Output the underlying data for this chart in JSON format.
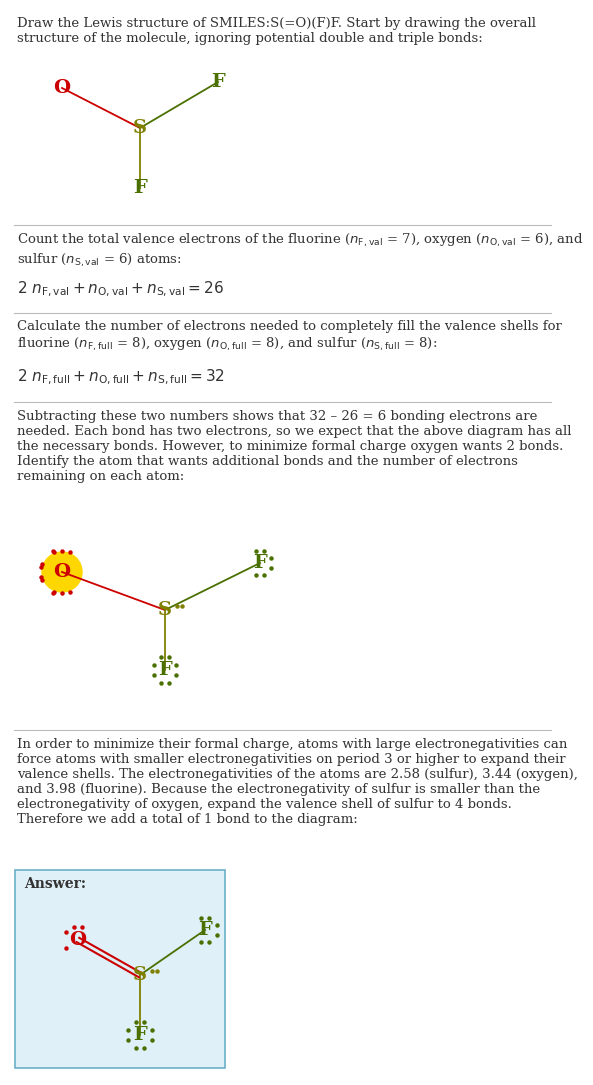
{
  "bg_color": "#ffffff",
  "text_color": "#333333",
  "O_color": "#cc0000",
  "S_color": "#808000",
  "F_color": "#4a7000",
  "bond_OS_color": "#cc0000",
  "bond_SF_color": "#4a7000",
  "bond_SF2_color": "#808000",
  "highlight_color": "#ffd700",
  "answer_box_color": "#dff0f8",
  "answer_box_border": "#6ab0c8",
  "separator_color": "#bbbbbb",
  "title": "Draw the Lewis structure of SMILES:S(=O)(F)F. Start by drawing the overall\nstructure of the molecule, ignoring potential double and triple bonds:",
  "sec1_line1": "Count the total valence electrons of the fluorine (",
  "sec2_line1": "Calculate the number of electrons needed to completely fill the valence shells for",
  "sec3_text": "Subtracting these two numbers shows that 32 – 26 = 6 bonding electrons are\nneeded. Each bond has two electrons, so we expect that the above diagram has all\nthe necessary bonds. However, to minimize formal charge oxygen wants 2 bonds.\nIdentify the atom that wants additional bonds and the number of electrons\nremaining on each atom:",
  "sec4_text": "In order to minimize their formal charge, atoms with large electronegativities can\nforce atoms with smaller electronegativities on period 3 or higher to expand their\nvalence shells. The electronegativities of the atoms are 2.58 (sulfur), 3.44 (oxygen),\nand 3.98 (fluorine). Because the electronegativity of sulfur is smaller than the\nelectronegativity of oxygen, expand the valence shell of sulfur to 4 bonds.\nTherefore we add a total of 1 bond to the diagram:",
  "answer_label": "Answer:"
}
